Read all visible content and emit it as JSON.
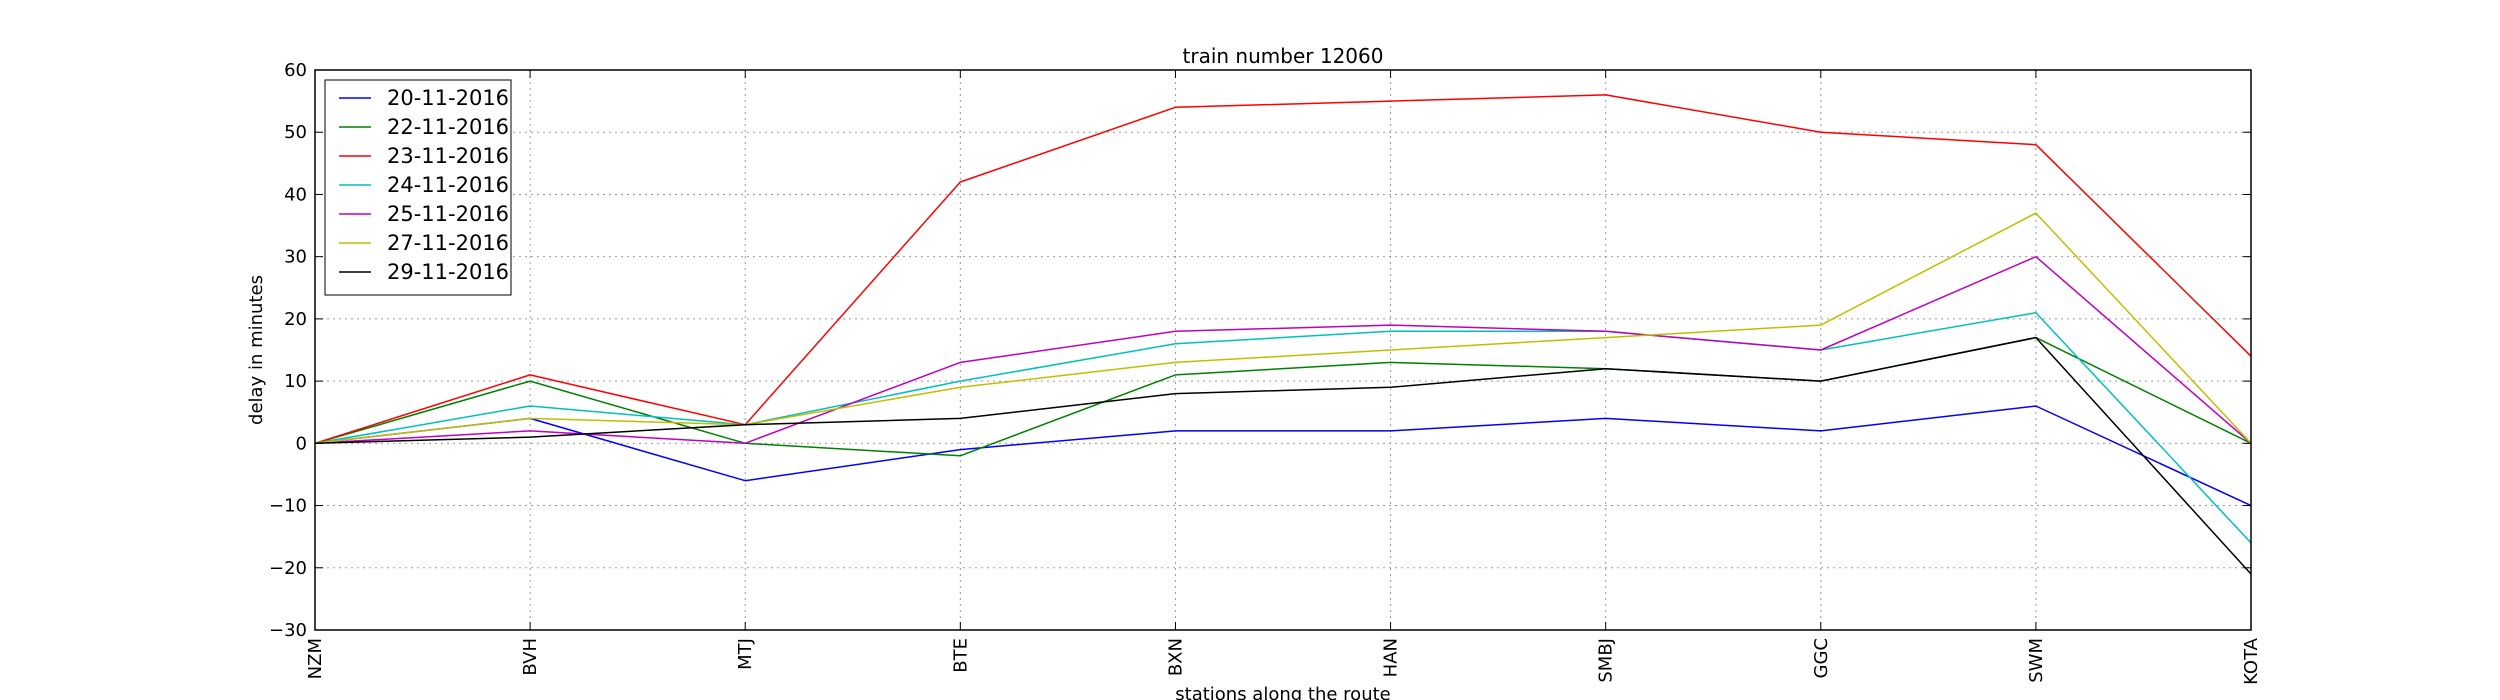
{
  "chart_data": {
    "type": "line",
    "title": "train number 12060",
    "xlabel": "stations along the route",
    "ylabel": "delay in minutes",
    "categories": [
      "NZM",
      "BVH",
      "MTJ",
      "BTE",
      "BXN",
      "HAN",
      "SMBJ",
      "GGC",
      "SWM",
      "KOTA"
    ],
    "ylim": [
      -30,
      60
    ],
    "yticks": [
      -30,
      -20,
      -10,
      0,
      10,
      20,
      30,
      40,
      50,
      60
    ],
    "grid": true,
    "legend_position": "top-left",
    "series": [
      {
        "name": "20-11-2016",
        "color": "#0000ff",
        "values": [
          0,
          4,
          -6,
          -1,
          2,
          2,
          4,
          2,
          6,
          -10
        ]
      },
      {
        "name": "22-11-2016",
        "color": "#008000",
        "values": [
          0,
          10,
          0,
          -2,
          11,
          13,
          12,
          10,
          17,
          0
        ]
      },
      {
        "name": "23-11-2016",
        "color": "#ff0000",
        "values": [
          0,
          11,
          3,
          42,
          54,
          55,
          56,
          50,
          48,
          14
        ]
      },
      {
        "name": "24-11-2016",
        "color": "#00bfbf",
        "values": [
          0,
          6,
          3,
          10,
          16,
          18,
          18,
          15,
          21,
          -16
        ]
      },
      {
        "name": "25-11-2016",
        "color": "#bf00bf",
        "values": [
          0,
          2,
          0,
          13,
          18,
          19,
          18,
          15,
          30,
          0
        ]
      },
      {
        "name": "27-11-2016",
        "color": "#bfbf00",
        "values": [
          0,
          4,
          3,
          9,
          13,
          15,
          17,
          19,
          37,
          0
        ]
      },
      {
        "name": "29-11-2016",
        "color": "#000000",
        "values": [
          0,
          1,
          3,
          4,
          8,
          9,
          12,
          10,
          17,
          -21
        ]
      }
    ]
  }
}
